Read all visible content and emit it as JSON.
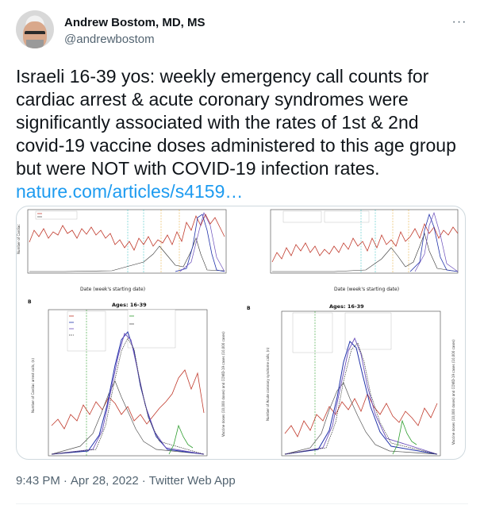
{
  "author": {
    "name": "Andrew Bostom, MD, MS",
    "handle": "@andrewbostom"
  },
  "more_label": "···",
  "tweet": {
    "text": "Israeli 16-39 yos: weekly emergency call counts for cardiac arrest & acute coronary syndromes were significantly associated with the rates of 1st & 2nd covid-19 vaccine doses administered to this age group but were NOT with COVID-19 infection rates.",
    "link": "nature.com/articles/s4159…"
  },
  "meta": {
    "time": "9:43 PM",
    "date": "Apr 28, 2022",
    "source": "Twitter Web App",
    "separator": "·"
  },
  "media": {
    "panel_a_xlabel": "Date (week's starting date)",
    "panel_b_xlabel": "Date (week's starting date)",
    "panel_c_label": "B",
    "panel_d_label": "B",
    "panel_c_title": "Ages: 16-39",
    "panel_d_title": "Ages: 16-39",
    "panel_c_ylabel": "Number of Cardiac arrest calls, (n)",
    "panel_d_ylabel": "Number of Acute coronary syndrome calls, (n)",
    "panel_c_y2label": "Vaccine doses (10,000 doses) and COVID-19 cases (10,000 cases)",
    "panel_d_y2label": "Vaccine doses (10,000 doses) and COVID-19 cases (10,000 cases)"
  }
}
